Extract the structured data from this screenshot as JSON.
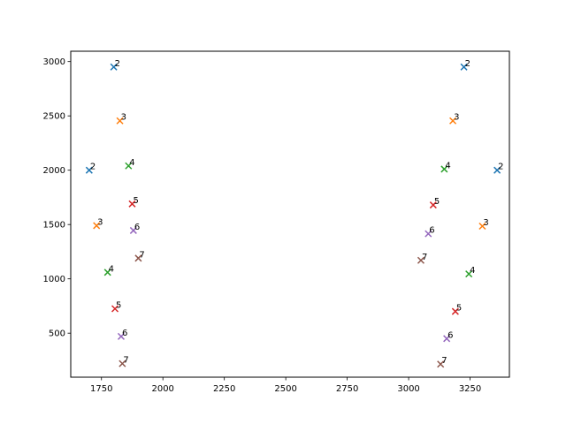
{
  "chart_data": {
    "type": "scatter",
    "marker": "x",
    "xlim": [
      1625,
      3410
    ],
    "ylim": [
      95,
      3095
    ],
    "x_ticks": [
      1750,
      2000,
      2250,
      2500,
      2750,
      3000,
      3250
    ],
    "y_ticks": [
      500,
      1000,
      1500,
      2000,
      2500,
      3000
    ],
    "grid": false,
    "legend": "none",
    "colors": {
      "2": "#1f77b4",
      "3": "#ff7f0e",
      "4": "#2ca02c",
      "5": "#d62728",
      "6": "#9467bd",
      "7": "#8c564b"
    },
    "points": [
      {
        "x": 1800,
        "y": 2950,
        "label": "2"
      },
      {
        "x": 1825,
        "y": 2455,
        "label": "3"
      },
      {
        "x": 1860,
        "y": 2040,
        "label": "4"
      },
      {
        "x": 1875,
        "y": 1690,
        "label": "5"
      },
      {
        "x": 1880,
        "y": 1445,
        "label": "6"
      },
      {
        "x": 1900,
        "y": 1190,
        "label": "7"
      },
      {
        "x": 1700,
        "y": 2000,
        "label": "2"
      },
      {
        "x": 1730,
        "y": 1490,
        "label": "3"
      },
      {
        "x": 1775,
        "y": 1060,
        "label": "4"
      },
      {
        "x": 1805,
        "y": 725,
        "label": "5"
      },
      {
        "x": 1830,
        "y": 470,
        "label": "6"
      },
      {
        "x": 1835,
        "y": 220,
        "label": "7"
      },
      {
        "x": 3225,
        "y": 2950,
        "label": "2"
      },
      {
        "x": 3180,
        "y": 2455,
        "label": "3"
      },
      {
        "x": 3145,
        "y": 2010,
        "label": "4"
      },
      {
        "x": 3100,
        "y": 1680,
        "label": "5"
      },
      {
        "x": 3080,
        "y": 1415,
        "label": "6"
      },
      {
        "x": 3050,
        "y": 1170,
        "label": "7"
      },
      {
        "x": 3360,
        "y": 2000,
        "label": "2"
      },
      {
        "x": 3300,
        "y": 1485,
        "label": "3"
      },
      {
        "x": 3245,
        "y": 1045,
        "label": "4"
      },
      {
        "x": 3190,
        "y": 700,
        "label": "5"
      },
      {
        "x": 3155,
        "y": 450,
        "label": "6"
      },
      {
        "x": 3130,
        "y": 215,
        "label": "7"
      }
    ]
  }
}
